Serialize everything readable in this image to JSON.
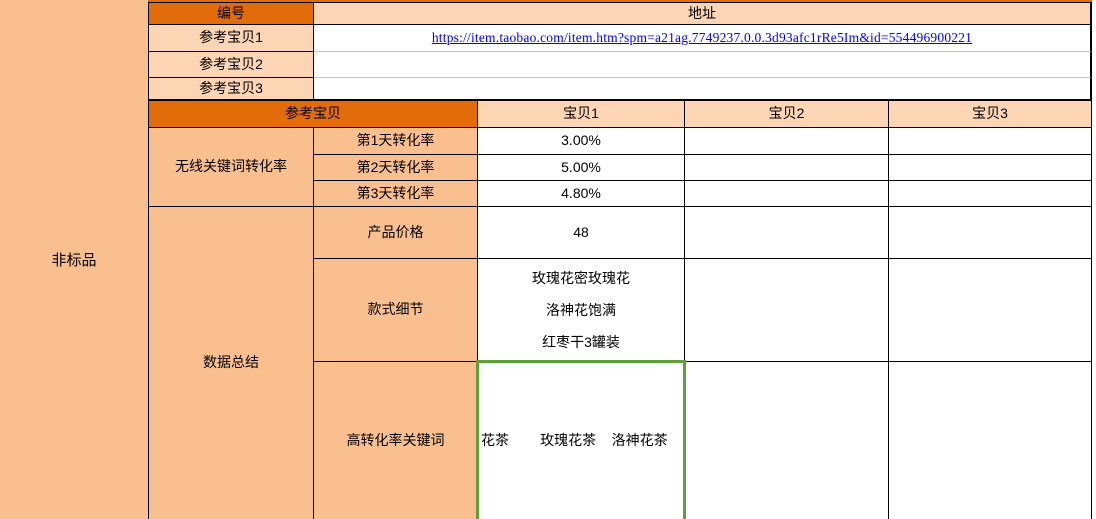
{
  "sidebar": {
    "category_label": "非标品"
  },
  "top_table": {
    "id_header": "编号",
    "address_header": "地址",
    "rows": [
      {
        "label": "参考宝贝1",
        "address": "https://item.taobao.com/item.htm?spm=a21ag.7749237.0.0.3d93afc1rRe5Im&id=554496900221"
      },
      {
        "label": "参考宝贝2",
        "address": ""
      },
      {
        "label": "参考宝贝3",
        "address": ""
      }
    ]
  },
  "data_table": {
    "group_header": "参考宝贝",
    "item_headers": [
      "宝贝1",
      "宝贝2",
      "宝贝3"
    ],
    "conversion_group": {
      "label": "无线关键词转化率",
      "rows": [
        {
          "label": "第1天转化率",
          "values": [
            "3.00%",
            "",
            ""
          ]
        },
        {
          "label": "第2天转化率",
          "values": [
            "5.00%",
            "",
            ""
          ]
        },
        {
          "label": "第3天转化率",
          "values": [
            "4.80%",
            "",
            ""
          ]
        }
      ]
    },
    "summary_group": {
      "label": "数据总结",
      "rows": [
        {
          "label": "产品价格",
          "values": [
            "48",
            "",
            ""
          ]
        },
        {
          "label": "款式细节",
          "values": [
            "玫瑰花密玫瑰花\n洛神花饱满\n红枣干3罐装",
            "",
            ""
          ]
        },
        {
          "label": "高转化率关键词",
          "values": [
            "花茶        玫瑰花茶    洛神花茶",
            "",
            ""
          ]
        }
      ]
    }
  },
  "colors": {
    "header_dark_orange": "#E26B0A",
    "cell_medium_orange": "#FABF8F",
    "cell_light_orange": "#FCD5B4",
    "link_blue": "#0000FF",
    "selection_green": "#5DA13D",
    "gridline_gray": "#C6C6C6",
    "border_black": "#000000"
  }
}
